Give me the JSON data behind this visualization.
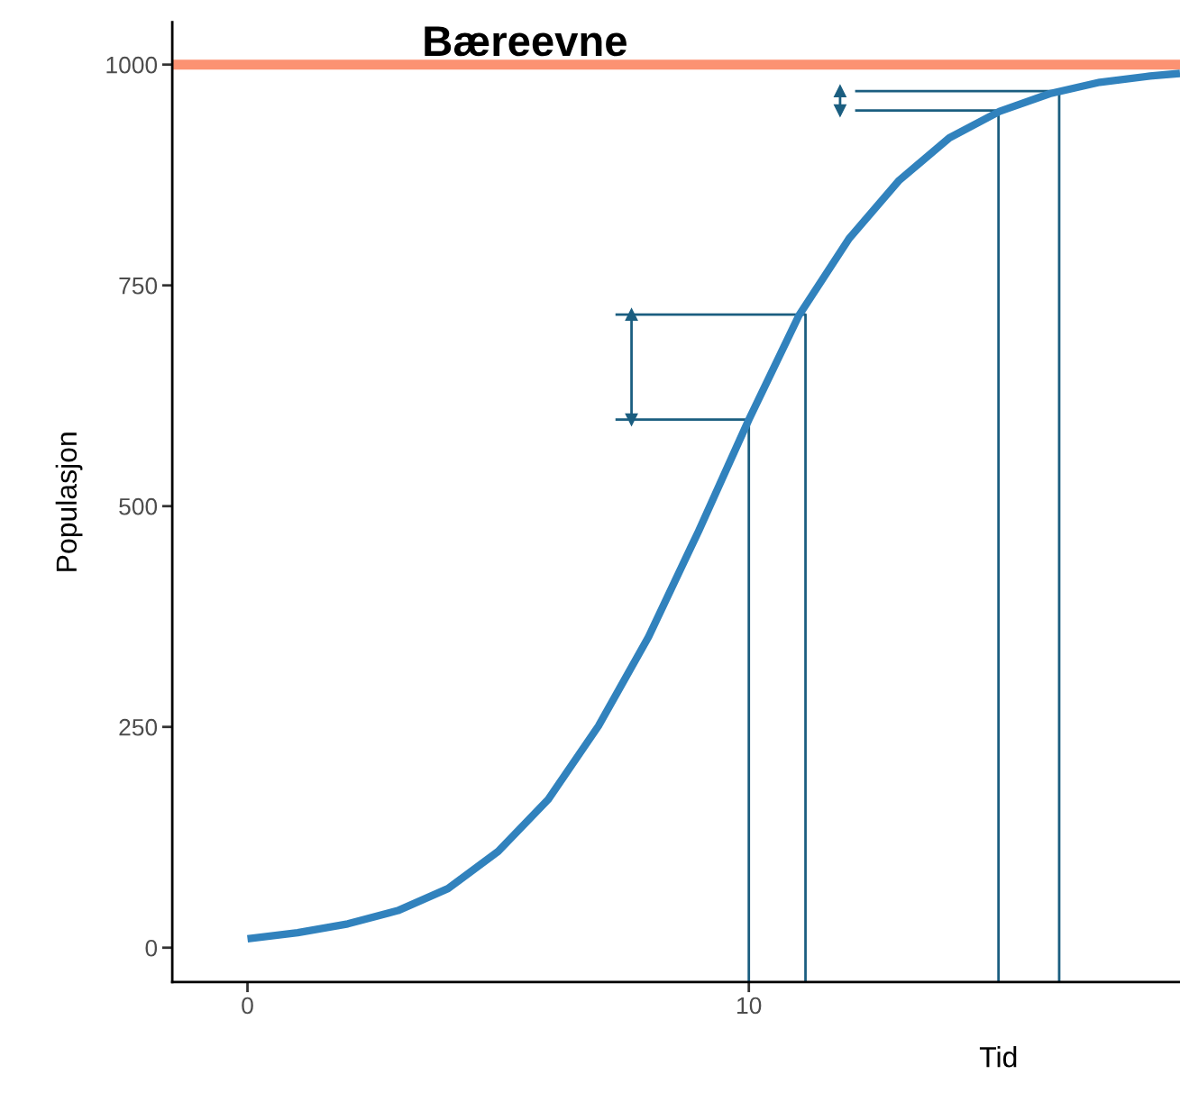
{
  "chart_data": {
    "type": "line",
    "xlabel": "Tid",
    "ylabel": "Populasjon",
    "xlim": [
      -1.5,
      18.6
    ],
    "ylim": [
      -39,
      1048
    ],
    "xticks": [
      0,
      10
    ],
    "yticks": [
      0,
      250,
      500,
      750,
      1000
    ],
    "grid": false,
    "legend": false,
    "series": [
      {
        "color": "#3182bd",
        "x": [
          0,
          1,
          2,
          3,
          4,
          5,
          6,
          7,
          8,
          9,
          10,
          11,
          12,
          13,
          14,
          15,
          16,
          17,
          18,
          18.6
        ],
        "values": [
          10,
          17,
          27,
          42,
          67,
          109,
          168,
          251,
          352,
          472,
          598,
          716,
          803,
          869,
          917,
          947,
          967,
          980,
          987,
          990
        ]
      },
      {
        "color": "#1b5e80",
        "x": [
          7.34,
          10,
          10
        ],
        "values": [
          598,
          598,
          -39
        ]
      },
      {
        "color": "#1b5e80",
        "x": [
          7.34,
          11.13,
          11.13
        ],
        "values": [
          717,
          717,
          -39
        ]
      },
      {
        "color": "#1b5e80",
        "x": [
          12.12,
          14.98,
          14.98
        ],
        "values": [
          948,
          948,
          -39
        ]
      },
      {
        "color": "#1b5e80",
        "x": [
          12.12,
          16.19,
          16.19
        ],
        "values": [
          970,
          970,
          -39
        ]
      },
      {
        "color": "#1b5e80",
        "x": [
          7.66,
          7.66
        ],
        "values": [
          598,
          717
        ],
        "marker": "triangle"
      },
      {
        "color": "#1b5e80",
        "x": [
          11.82,
          11.82
        ],
        "values": [
          948,
          970
        ],
        "marker": "triangle"
      }
    ],
    "ref_lines": [
      {
        "axis": "y",
        "value": 1000,
        "label": "Bæreevne",
        "color": "#fc9272"
      }
    ]
  }
}
